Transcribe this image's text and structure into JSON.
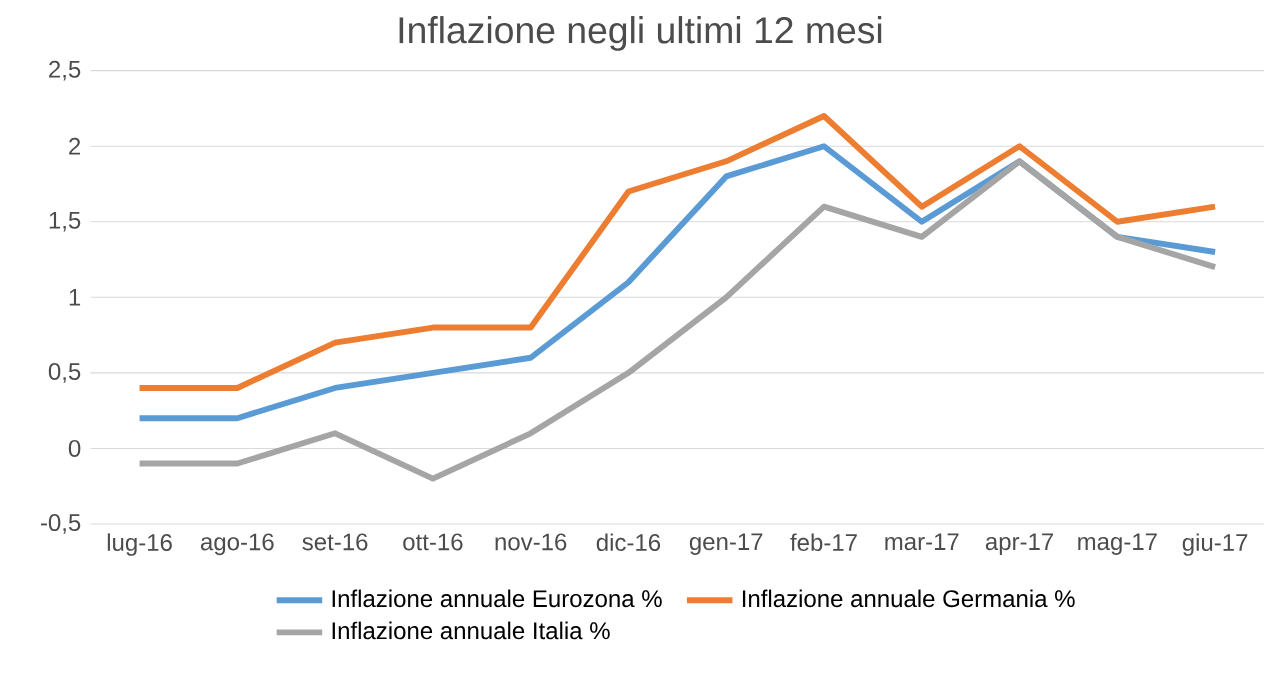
{
  "chart_data": {
    "type": "line",
    "title": "Inflazione negli ultimi 12 mesi",
    "categories": [
      "lug-16",
      "ago-16",
      "set-16",
      "ott-16",
      "nov-16",
      "dic-16",
      "gen-17",
      "feb-17",
      "mar-17",
      "apr-17",
      "mag-17",
      "giu-17"
    ],
    "series": [
      {
        "name": "Inflazione annuale Eurozona %",
        "color": "#5b9bd5",
        "values": [
          0.2,
          0.2,
          0.4,
          0.5,
          0.6,
          1.1,
          1.8,
          2.0,
          1.5,
          1.9,
          1.4,
          1.3
        ]
      },
      {
        "name": "Inflazione annuale Germania %",
        "color": "#ed7d31",
        "values": [
          0.4,
          0.4,
          0.7,
          0.8,
          0.8,
          1.7,
          1.9,
          2.2,
          1.6,
          2.0,
          1.5,
          1.6
        ]
      },
      {
        "name": "Inflazione annuale Italia %",
        "color": "#a5a5a5",
        "values": [
          -0.1,
          -0.1,
          0.1,
          -0.2,
          0.1,
          0.5,
          1.0,
          1.6,
          1.4,
          1.9,
          1.4,
          1.2
        ]
      }
    ],
    "ylim": [
      -0.5,
      2.5
    ],
    "yticks": [
      {
        "value": -0.5,
        "label": "-0,5"
      },
      0,
      {
        "value": 0.5,
        "label": "0,5"
      },
      1,
      {
        "value": 1.5,
        "label": "1,5"
      },
      2,
      {
        "value": 2.5,
        "label": "2,5"
      }
    ],
    "grid": "y",
    "legend": "bottom",
    "marker": "none",
    "line_style": "solid"
  }
}
